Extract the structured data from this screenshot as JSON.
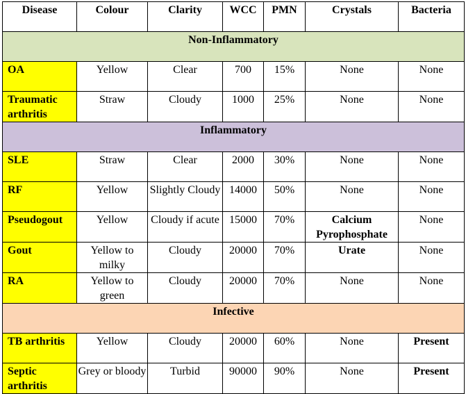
{
  "headers": [
    "Disease",
    "Colour",
    "Clarity",
    "WCC",
    "PMN",
    "Crystals",
    "Bacteria"
  ],
  "sections": [
    {
      "title": "Non-Inflammatory",
      "color": "#d8e4bc",
      "rows": [
        {
          "disease": "OA",
          "colour": "Yellow",
          "clarity": "Clear",
          "wcc": "700",
          "pmn": "15%",
          "crystals": "None",
          "bacteria": "None"
        },
        {
          "disease": "Traumatic arthritis",
          "colour": "Straw",
          "clarity": "Cloudy",
          "wcc": "1000",
          "pmn": "25%",
          "crystals": "None",
          "bacteria": "None"
        }
      ]
    },
    {
      "title": "Inflammatory",
      "color": "#ccc0da",
      "rows": [
        {
          "disease": "SLE",
          "colour": "Straw",
          "clarity": "Clear",
          "wcc": "2000",
          "pmn": "30%",
          "crystals": "None",
          "bacteria": "None"
        },
        {
          "disease": "RF",
          "colour": "Yellow",
          "clarity": "Slightly Cloudy",
          "wcc": "14000",
          "pmn": "50%",
          "crystals": "None",
          "bacteria": "None"
        },
        {
          "disease": "Pseudogout",
          "colour": "Yellow",
          "clarity": "Cloudy if acute",
          "wcc": "15000",
          "pmn": "70%",
          "crystals": "Calcium Pyrophosphate",
          "bacteria": "None"
        },
        {
          "disease": "Gout",
          "colour": "Yellow to milky",
          "clarity": "Cloudy",
          "wcc": "20000",
          "pmn": "70%",
          "crystals": "Urate",
          "bacteria": "None"
        },
        {
          "disease": "RA",
          "colour": "Yellow to green",
          "clarity": "Cloudy",
          "wcc": "20000",
          "pmn": "70%",
          "crystals": "None",
          "bacteria": "None"
        }
      ]
    },
    {
      "title": "Infective",
      "color": "#fcd5b4",
      "rows": [
        {
          "disease": "TB arthritis",
          "colour": "Yellow",
          "clarity": "Cloudy",
          "wcc": "20000",
          "pmn": "60%",
          "crystals": "None",
          "bacteria": "Present"
        },
        {
          "disease": "Septic arthritis",
          "colour": "Grey or bloody",
          "clarity": "Turbid",
          "wcc": "90000",
          "pmn": "90%",
          "crystals": "None",
          "bacteria": "Present"
        }
      ]
    }
  ],
  "highlight_color": "#ffff00"
}
